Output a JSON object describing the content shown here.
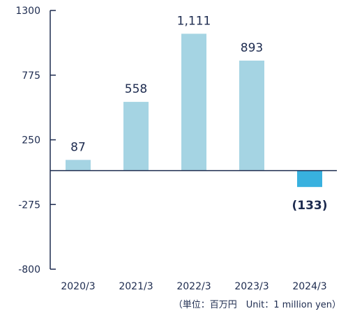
{
  "chart_data": {
    "type": "bar",
    "categories": [
      "2020/3",
      "2021/3",
      "2022/3",
      "2023/3",
      "2024/3"
    ],
    "values": [
      87,
      558,
      1111,
      893,
      -133
    ],
    "data_labels": [
      "87",
      "558",
      "1,111",
      "893",
      "(133)"
    ],
    "ylim": [
      -800,
      1300
    ],
    "yticks": [
      -800,
      -275,
      250,
      775,
      1300
    ],
    "ytick_labels": [
      "-800",
      "-275",
      "250",
      "775",
      "1300"
    ],
    "unit_note": "（単位：百万円　Unit：1 million yen）",
    "colors": {
      "positive": "#a5d4e3",
      "negative": "#38b1df",
      "axis": "#1d2b4f",
      "text": "#1d2b4f"
    }
  }
}
